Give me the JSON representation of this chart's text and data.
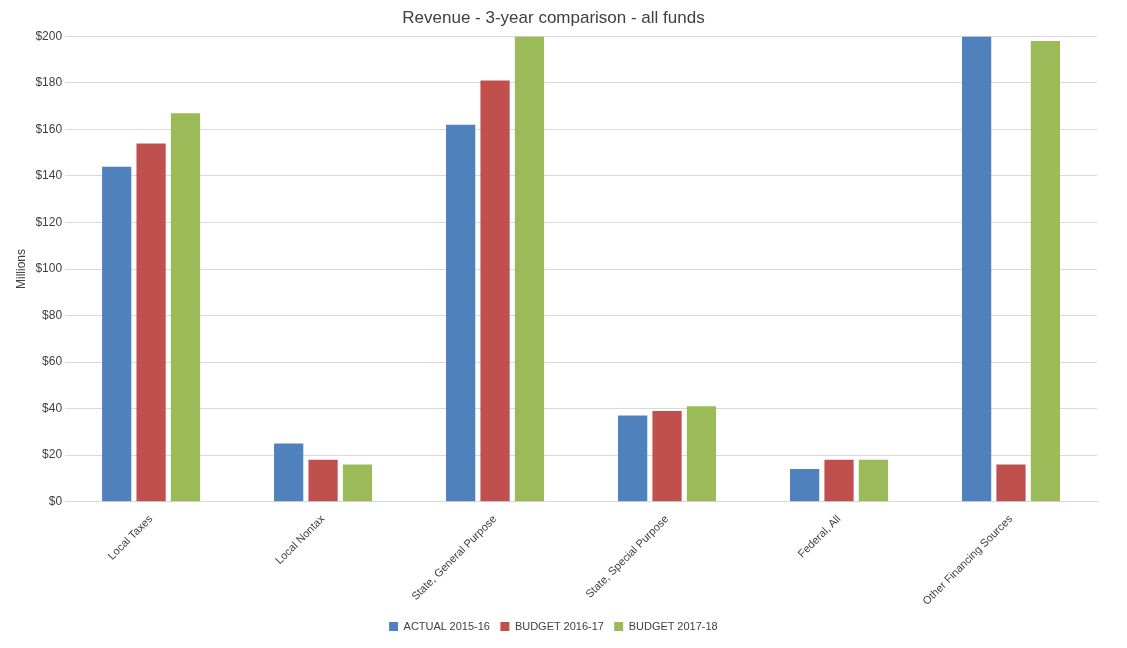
{
  "chart_data": {
    "type": "bar",
    "title": "Revenue - 3-year comparison - all funds",
    "ylabel": "Millions",
    "categories": [
      "Local Taxes",
      "Local Nontax",
      "State, General Purpose",
      "State, Special Purpose",
      "Federal, All",
      "Other Financing Sources"
    ],
    "series": [
      {
        "name": "ACTUAL 2015-16",
        "color": "#4f81bd",
        "values": [
          144,
          25,
          162,
          37,
          14,
          200
        ]
      },
      {
        "name": "BUDGET 2016-17",
        "color": "#c0504d",
        "values": [
          154,
          18,
          181,
          39,
          18,
          16
        ]
      },
      {
        "name": "BUDGET 2017-18",
        "color": "#9bbb59",
        "values": [
          167,
          16,
          200,
          41,
          18,
          198
        ]
      }
    ],
    "ylim": [
      0,
      200
    ],
    "yticks": [
      {
        "value": 0,
        "label": "$0"
      },
      {
        "value": 20,
        "label": "$20"
      },
      {
        "value": 40,
        "label": "$40"
      },
      {
        "value": 60,
        "label": "$60"
      },
      {
        "value": 80,
        "label": "$80"
      },
      {
        "value": 100,
        "label": "$100"
      },
      {
        "value": 120,
        "label": "$120"
      },
      {
        "value": 140,
        "label": "$140"
      },
      {
        "value": 160,
        "label": "$160"
      },
      {
        "value": 180,
        "label": "$180"
      },
      {
        "value": 200,
        "label": "$200"
      }
    ],
    "grid": "y",
    "legend": "bottom"
  }
}
